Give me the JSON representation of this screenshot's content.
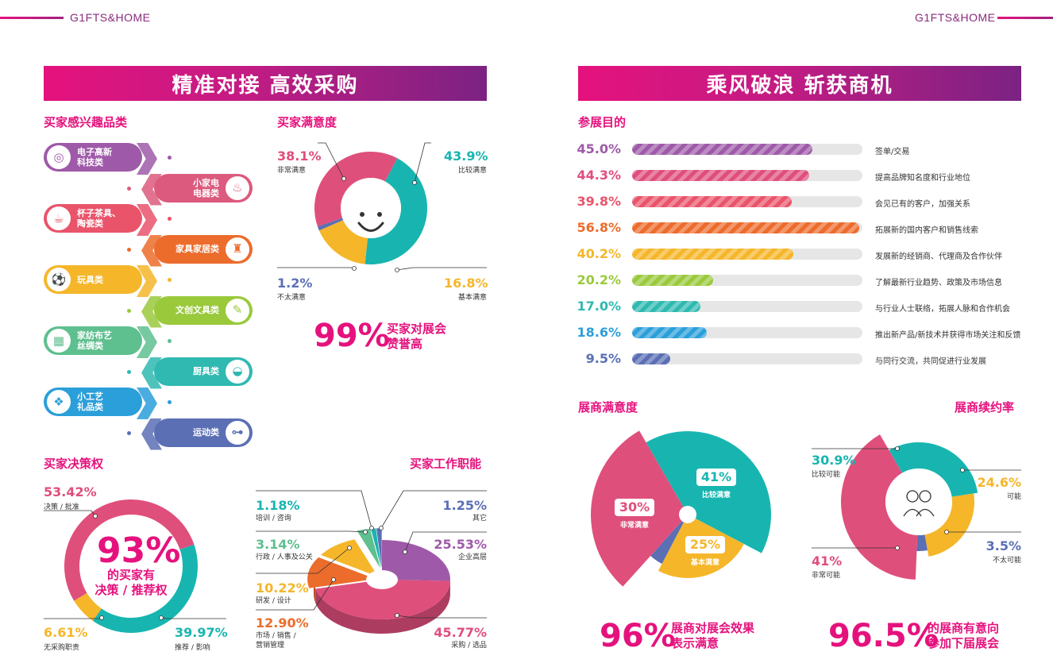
{
  "brand_left": "G1FTS&HOME",
  "brand_right": "G1FTS&HOME",
  "left_banner": "精准对接 高效采购",
  "right_banner": "乘风破浪 斩获商机",
  "colors": {
    "accent": "#e5127d",
    "purple": "#7b2283"
  },
  "interest": {
    "title": "买家感兴趣品类",
    "items": [
      {
        "label": "电子高新\n科技类",
        "icon": "gamepad-icon",
        "glyph": "◎",
        "color": "#9e5aa8"
      },
      {
        "label": "小家电\n电器类",
        "icon": "vacuum-icon",
        "glyph": "♨",
        "color": "#dc5a7d"
      },
      {
        "label": "杯子茶具、\n陶瓷类",
        "icon": "cup-icon",
        "glyph": "☕",
        "color": "#e9546b"
      },
      {
        "label": "家具家居类",
        "icon": "lamp-icon",
        "glyph": "♜",
        "color": "#ec6c2c"
      },
      {
        "label": "玩具类",
        "icon": "ball-icon",
        "glyph": "⚽",
        "color": "#f5b62a"
      },
      {
        "label": "文创文具类",
        "icon": "stationery-icon",
        "glyph": "✎",
        "color": "#9ac93c"
      },
      {
        "label": "家纺布艺\n丝绸类",
        "icon": "fabric-icon",
        "glyph": "▦",
        "color": "#5ebf8f"
      },
      {
        "label": "厨具类",
        "icon": "cloche-icon",
        "glyph": "◒",
        "color": "#2fb9b0"
      },
      {
        "label": "小工艺\n礼品类",
        "icon": "gift-icon",
        "glyph": "❖",
        "color": "#2b9fd9"
      },
      {
        "label": "运动类",
        "icon": "dumbbell-icon",
        "glyph": "⊶",
        "color": "#5b6fb5"
      }
    ]
  },
  "satisfaction": {
    "title": "买家满意度",
    "big": "99%",
    "caption": "买家对展会\n赞誉高"
  },
  "decision": {
    "title": "买家决策权",
    "big": "93%",
    "caption": "的买家有\n决策 / 推荐权"
  },
  "jobs": {
    "title": "买家工作职能"
  },
  "purpose": {
    "title": "参展目的"
  },
  "exhibitor_sat": {
    "title": "展商满意度",
    "big": "96%",
    "caption": "展商对展会效果\n表示满意"
  },
  "renewal": {
    "title": "展商续约率",
    "big": "96.5%",
    "caption": "的展商有意向\n参加下届展会",
    "center_icon": "people-icon"
  },
  "chart_data": [
    {
      "type": "pie",
      "name": "buyer_satisfaction",
      "slices": [
        {
          "label": "比较满意",
          "value": 43.9,
          "pct": "43.9%",
          "color": "#18b5b0"
        },
        {
          "label": "基本满意",
          "value": 16.8,
          "pct": "16.8%",
          "color": "#f5b62a"
        },
        {
          "label": "不太满意",
          "value": 1.2,
          "pct": "1.2%",
          "color": "#5b6fb5"
        },
        {
          "label": "非常满意",
          "value": 38.1,
          "pct": "38.1%",
          "color": "#df4f7c"
        }
      ]
    },
    {
      "type": "pie",
      "name": "buyer_decision",
      "slices": [
        {
          "label": "推荐 / 影响",
          "value": 39.97,
          "pct": "39.97%",
          "color": "#18b5b0"
        },
        {
          "label": "无采购职责",
          "value": 6.61,
          "pct": "6.61%",
          "color": "#f5b62a"
        },
        {
          "label": "决策 / 批准",
          "value": 53.42,
          "pct": "53.42%",
          "color": "#df4f7c"
        }
      ]
    },
    {
      "type": "pie",
      "name": "buyer_job_function",
      "slices": [
        {
          "label": "企业高层",
          "value": 25.53,
          "pct": "25.53%",
          "color": "#9e5aa8"
        },
        {
          "label": "采购 / 选品",
          "value": 45.77,
          "pct": "45.77%",
          "color": "#df4f7c"
        },
        {
          "label": "市场 / 销售 / \n营销管理",
          "value": 12.9,
          "pct": "12.90%",
          "color": "#ec6c2c"
        },
        {
          "label": "研发 / 设计",
          "value": 10.22,
          "pct": "10.22%",
          "color": "#f5b62a"
        },
        {
          "label": "行政 / 人事及公关",
          "value": 3.14,
          "pct": "3.14%",
          "color": "#5ebf8f"
        },
        {
          "label": "培训 / 咨询",
          "value": 1.18,
          "pct": "1.18%",
          "color": "#18b5b0"
        },
        {
          "label": "其它",
          "value": 1.25,
          "pct": "1.25%",
          "color": "#5b6fb5"
        }
      ]
    },
    {
      "type": "bar",
      "name": "exhibit_purpose",
      "xlim": [
        0,
        100
      ],
      "bars": [
        {
          "pct": "45.0%",
          "value": 45.0,
          "label": "签单/交易",
          "color": "#9e5aa8"
        },
        {
          "pct": "44.3%",
          "value": 44.3,
          "label": "提高品牌知名度和行业地位",
          "color": "#df4f7c"
        },
        {
          "pct": "39.8%",
          "value": 39.8,
          "label": "会见已有的客户，加强关系",
          "color": "#e9546b"
        },
        {
          "pct": "56.8%",
          "value": 56.8,
          "label": "拓展新的国内客户和销售线索",
          "color": "#ec6c2c"
        },
        {
          "pct": "40.2%",
          "value": 40.2,
          "label": "发展新的经销商、代理商及合作伙伴",
          "color": "#f5b62a"
        },
        {
          "pct": "20.2%",
          "value": 20.2,
          "label": "了解最新行业趋势、政策及市场信息",
          "color": "#9ac93c"
        },
        {
          "pct": "17.0%",
          "value": 17.0,
          "label": "与行业人士联络，拓展人脉和合作机会",
          "color": "#2fb9b0"
        },
        {
          "pct": "18.6%",
          "value": 18.6,
          "label": "推出新产品/新技术并获得市场关注和反馈",
          "color": "#2b9fd9"
        },
        {
          "pct": "9.5%",
          "value": 9.5,
          "label": "与同行交流，共同促进行业发展",
          "color": "#5b6fb5"
        }
      ]
    },
    {
      "type": "pie",
      "name": "exhibitor_satisfaction",
      "slices": [
        {
          "label": "比较满意",
          "value": 41,
          "pct": "41%",
          "color": "#18b5b0"
        },
        {
          "label": "基本满意",
          "value": 25,
          "pct": "25%",
          "color": "#f5b62a"
        },
        {
          "label": "",
          "value": 4,
          "pct": "",
          "color": "#5b6fb5"
        },
        {
          "label": "非常满意",
          "value": 30,
          "pct": "30%",
          "color": "#df4f7c"
        }
      ]
    },
    {
      "type": "pie",
      "name": "exhibitor_renewal",
      "slices": [
        {
          "label": "比较可能",
          "value": 30.9,
          "pct": "30.9%",
          "color": "#18b5b0"
        },
        {
          "label": "可能",
          "value": 24.6,
          "pct": "24.6%",
          "color": "#f5b62a"
        },
        {
          "label": "不太可能",
          "value": 3.5,
          "pct": "3.5%",
          "color": "#5b6fb5"
        },
        {
          "label": "非常可能",
          "value": 41,
          "pct": "41%",
          "color": "#df4f7c"
        }
      ]
    }
  ]
}
